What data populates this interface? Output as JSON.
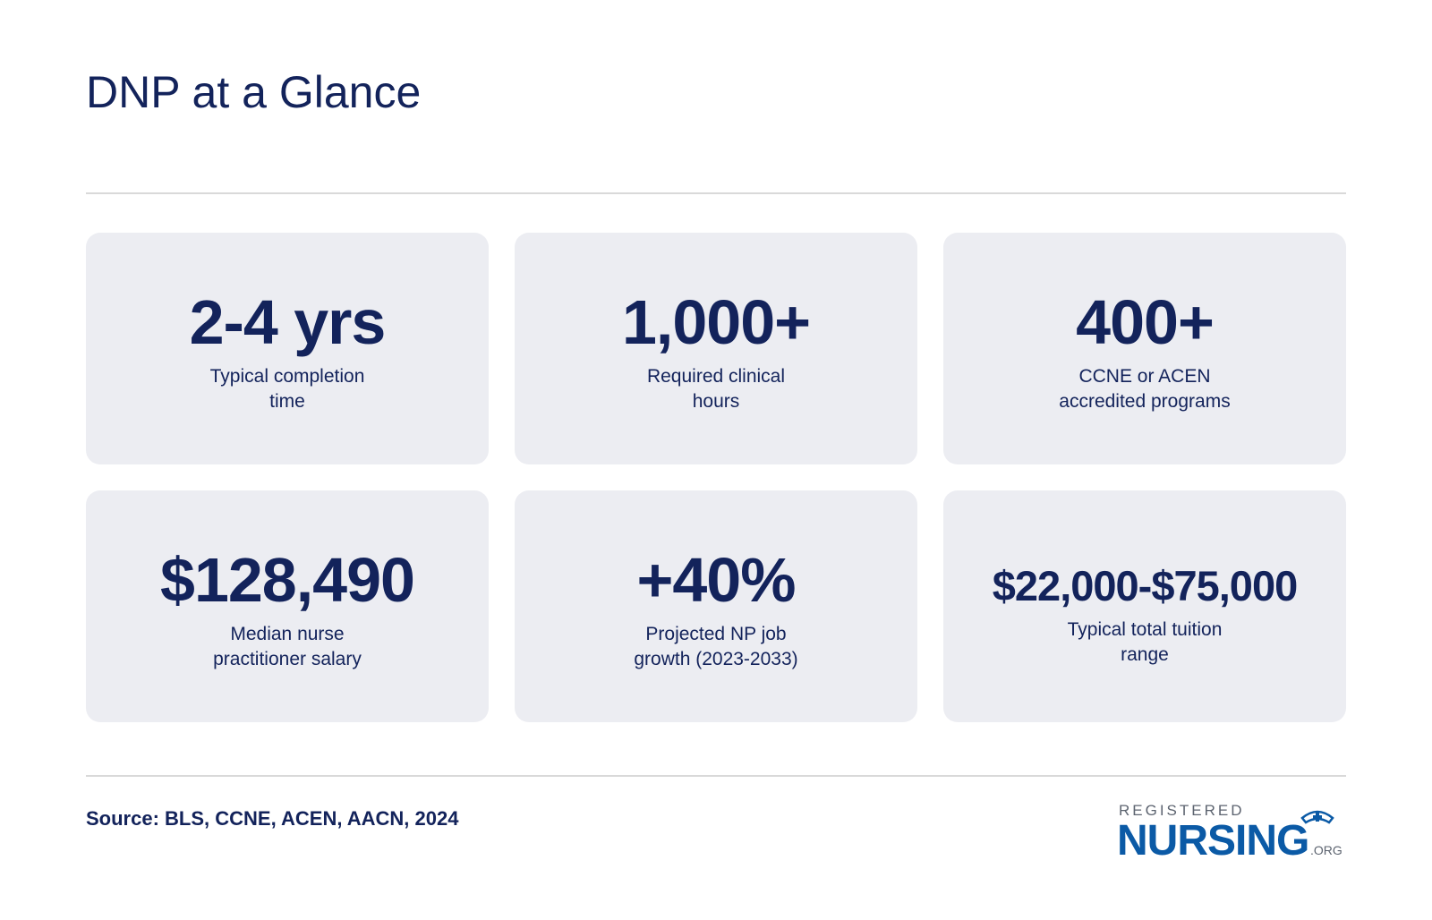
{
  "header": {
    "title": "DNP at a Glance"
  },
  "cards": [
    {
      "value": "2-4 yrs",
      "label": [
        "Typical completion",
        "time"
      ]
    },
    {
      "value": "1,000+",
      "label": [
        "Required clinical",
        "hours"
      ]
    },
    {
      "value": "400+",
      "label": [
        "CCNE or ACEN",
        "accredited programs"
      ]
    },
    {
      "value": "$128,490",
      "label": [
        "Median nurse",
        "practitioner salary"
      ]
    },
    {
      "value": "+40%",
      "label": [
        "Projected NP job",
        "growth (2023-2033)"
      ]
    },
    {
      "value": "$22,000-$75,000",
      "label": [
        "Typical total tuition",
        "range"
      ]
    }
  ],
  "footer": {
    "source": "Source: BLS, CCNE, ACEN, AACN, 2024",
    "logo": {
      "top": "REGISTERED",
      "main": "NURSING",
      "suffix": ".ORG"
    }
  }
}
